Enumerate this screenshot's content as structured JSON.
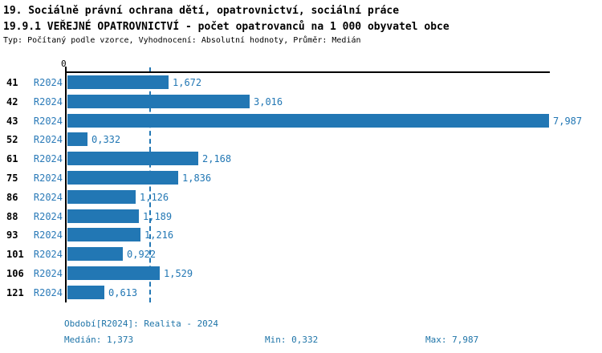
{
  "page": {
    "title_line1": "19. Sociálně právní ochrana dětí, opatrovnictví, sociální práce",
    "title_line2": "19.9.1 VEŘEJNÉ OPATROVNICTVÍ - počet opatrovanců na 1 000 obyvatel obce",
    "subtitle": "Typ: Počítaný podle vzorce, Vyhodnocení: Absolutní hodnoty, Průměr: Medián"
  },
  "chart_data": {
    "type": "bar",
    "orientation": "horizontal",
    "title": "19.9.1 VEŘEJNÉ OPATROVNICTVÍ - počet opatrovanců na 1 000 obyvatel obce",
    "categories": [
      "41",
      "42",
      "43",
      "52",
      "61",
      "75",
      "86",
      "88",
      "93",
      "101",
      "106",
      "121"
    ],
    "series": [
      {
        "name": "R2024",
        "values": [
          1.672,
          3.016,
          7.987,
          0.332,
          2.168,
          1.836,
          1.126,
          1.189,
          1.216,
          0.922,
          1.529,
          0.613
        ]
      }
    ],
    "value_labels": [
      "1,672",
      "3,016",
      "7,987",
      "0,332",
      "2,168",
      "1,836",
      "1,126",
      "1,189",
      "1,216",
      "0,922",
      "1,529",
      "0,613"
    ],
    "xlim": [
      0,
      8
    ],
    "axis_zero_label": "0",
    "grid": false,
    "median_line": {
      "value": 1.373,
      "style": "dashed"
    },
    "stats": {
      "median": 1.373,
      "min": 0.332,
      "max": 7.987
    },
    "bar_color": "#2277B4",
    "value_label_color": "#2277B4",
    "series_label_color": "#2A7AB8",
    "median_line_color": "#2277B4"
  },
  "footer": {
    "period": "Období[R2024]: Realita - 2024",
    "median": "Medián: 1,373",
    "min": "Min: 0,332",
    "max": "Max: 7,987"
  }
}
